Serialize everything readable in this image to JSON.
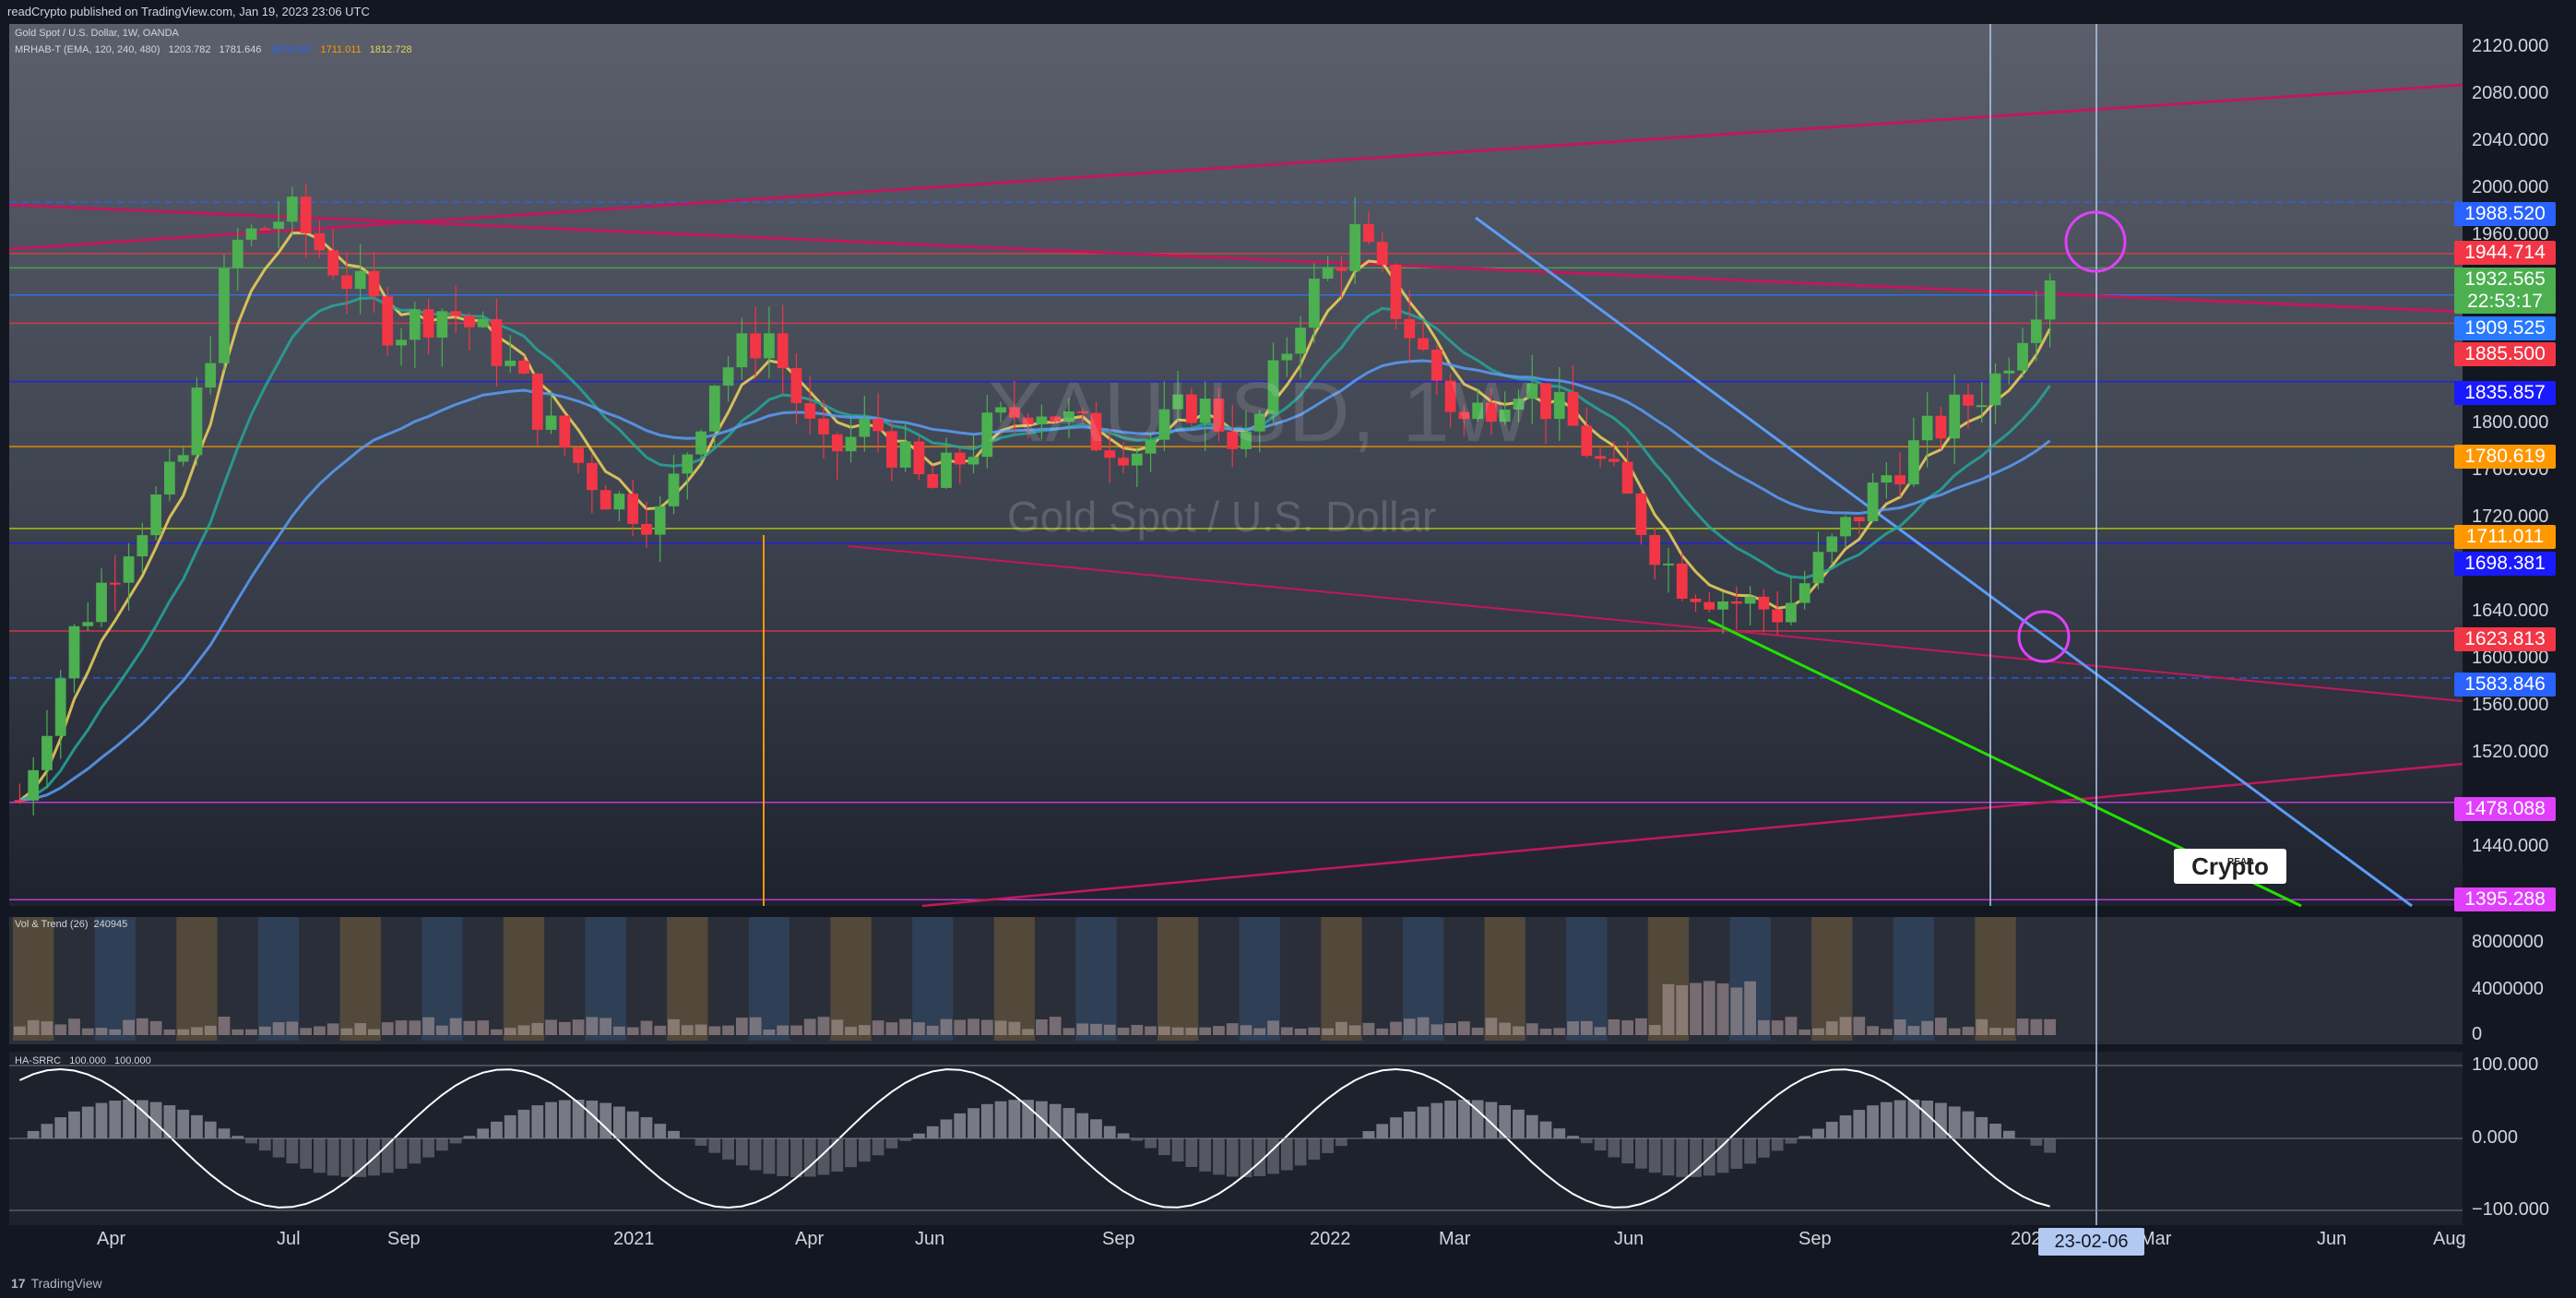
{
  "header": {
    "published": "readCrypto published on TradingView.com, Jan 19, 2023 23:06 UTC"
  },
  "footer": {
    "brand": "TradingView"
  },
  "legend": {
    "main": "Gold Spot / U.S. Dollar, 1W, OANDA",
    "indicator": "MRHAB-T (EMA, 120, 240, 480)",
    "indicator_values": [
      "1203.782",
      "1781.646",
      "1879.267",
      "1711.011",
      "1812.728"
    ],
    "vol_label": "Vol & Trend (26)",
    "vol_value": "240945",
    "ha_label": "HA-SRRC",
    "ha_values": [
      "100.000",
      "100.000"
    ]
  },
  "watermark": {
    "symbol": "XAUUSD, 1W",
    "name": "Gold Spot / U.S. Dollar"
  },
  "logo_text": "Crypto",
  "logo_small": "READ",
  "price_axis": [
    "2120.000",
    "2080.000",
    "2040.000",
    "2000.000",
    "1960.000",
    "1800.000",
    "1760.000",
    "1720.000",
    "1640.000",
    "1600.000",
    "1560.000",
    "1520.000",
    "1440.000"
  ],
  "price_badges": [
    {
      "text": "1988.520",
      "color": "#2962ff"
    },
    {
      "text": "1944.714",
      "color": "#f23645"
    },
    {
      "text": "1932.565",
      "color": "#4caf50"
    },
    {
      "text": "22:53:17",
      "color": "#4caf50"
    },
    {
      "text": "1909.525",
      "color": "#2979ff"
    },
    {
      "text": "1885.500",
      "color": "#f23645"
    },
    {
      "text": "1835.857",
      "color": "#1a1aff"
    },
    {
      "text": "1780.619",
      "color": "#ff9800"
    },
    {
      "text": "1711.011",
      "color": "#ff9800"
    },
    {
      "text": "1698.381",
      "color": "#1a1aff"
    },
    {
      "text": "1623.813",
      "color": "#f23645"
    },
    {
      "text": "1583.846",
      "color": "#2962ff"
    },
    {
      "text": "1478.088",
      "color": "#e040fb"
    },
    {
      "text": "1395.288",
      "color": "#e040fb"
    }
  ],
  "vol_axis": [
    "8000000",
    "4000000",
    "0"
  ],
  "osc_axis": [
    "100.000",
    "0.000",
    "−100.000"
  ],
  "time_axis": [
    "Apr",
    "Jul",
    "Sep",
    "2021",
    "Apr",
    "Jun",
    "Sep",
    "2022",
    "Mar",
    "Jun",
    "Sep",
    "2023",
    "Mar",
    "Jun",
    "Aug"
  ],
  "crosshair_date": "23-02-06",
  "colors": {
    "bull": "#4caf50",
    "bear": "#f23645",
    "bg": "#131722"
  },
  "chart_data": {
    "type": "candlestick",
    "title": "Gold Spot / U.S. Dollar, 1W, OANDA",
    "y_range": [
      1390,
      2140
    ],
    "x_labels": [
      "Apr",
      "Jul",
      "Sep",
      "2021",
      "Apr",
      "Jun",
      "Sep",
      "2022",
      "Mar",
      "Jun",
      "Sep",
      "2023",
      "Mar",
      "Jun",
      "Aug"
    ],
    "close_path": [
      1480,
      1620,
      1700,
      1760,
      1950,
      1980,
      1930,
      1880,
      1900,
      1860,
      1790,
      1740,
      1720,
      1840,
      1880,
      1770,
      1800,
      1740,
      1790,
      1820,
      1790,
      1780,
      1820,
      1780,
      1900,
      1960,
      1880,
      1800,
      1840,
      1800,
      1740,
      1670,
      1650,
      1640,
      1700,
      1760,
      1800,
      1840,
      1932
    ],
    "levels": [
      1988.52,
      1944.714,
      1932.565,
      1909.525,
      1885.5,
      1835.857,
      1780.619,
      1711.011,
      1698.381,
      1623.813,
      1583.846,
      1478.088,
      1395.288
    ],
    "current_price": 1932.565
  }
}
